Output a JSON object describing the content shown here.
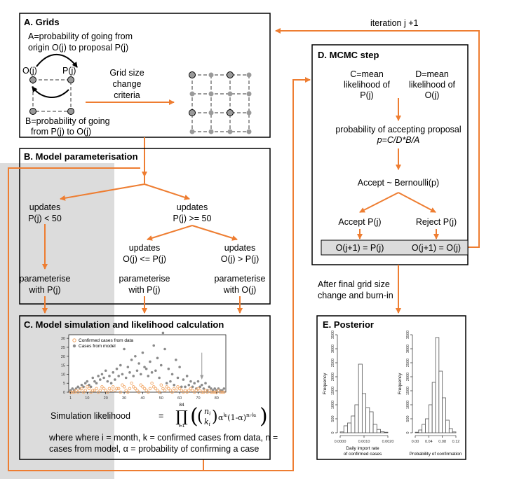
{
  "panelA": {
    "title": "A. Grids",
    "descA_line1": "A=probability of going from",
    "descA_line2": "origin O(j) to proposal P(j)",
    "node_origin": "O(j)",
    "node_proposal": "P(j)",
    "descB_line1": "B=probability of going",
    "descB_line2": "from P(j) to O(j)",
    "criteria_line1": "Grid size",
    "criteria_line2": "change",
    "criteria_line3": "criteria"
  },
  "iteration_label": "iteration j +1",
  "panelB": {
    "title": "B. Model parameterisation",
    "updates_lt_1": "updates",
    "updates_lt_2": "P(j) < 50",
    "updates_ge_1": "updates",
    "updates_ge_2": "P(j) >= 50",
    "updates_le_1": "updates",
    "updates_le_2": "O(j) <= P(j)",
    "updates_gt_1": "updates",
    "updates_gt_2": "O(j) > P(j)",
    "param1_1": "parameterise",
    "param1_2": "with P(j)",
    "param2_1": "parameterise",
    "param2_2": "with P(j)",
    "param3_1": "parameterise",
    "param3_2": "with O(j)"
  },
  "panelC": {
    "title": "C. Model simulation and likelihood calculation",
    "legend_data": "Confirmed cases from data",
    "legend_model": "Cases from model",
    "likelihood_label": "Simulation likelihood",
    "equals": "=",
    "formula_upper": "84",
    "formula_lower": "i=1",
    "where_line1": "where  where i = month, k = confirmed cases from data, n =",
    "where_line2": "cases from model, α = probability of confirming a case"
  },
  "panelD": {
    "title": "D. MCMC step",
    "C_line1": "C=mean",
    "C_line2": "likelihood of",
    "C_line3": "P(j)",
    "D_line1": "D=mean",
    "D_line2": "likelihood of",
    "D_line3": "O(j)",
    "prob_line1": "probability of accepting proposal",
    "prob_line2": "p=C/D*B/A",
    "bernoulli": "Accept ~ Bernoulli(p)",
    "accept": "Accept P(j)",
    "reject": "Reject P(j)",
    "update_accept": "O(j+1) = P(j)",
    "update_reject": "O(j+1) = O(j)"
  },
  "after_line1": "After final grid size",
  "after_line2": "change and burn-in",
  "panelE": {
    "title": "E. Posterior",
    "ylabel": "Frequency",
    "xlabel1_line1": "Daily import rate",
    "xlabel1_line2": "of confirmed cases",
    "xlabel2": "Probability of confirmation"
  },
  "colors": {
    "arrow": "#ee7d31",
    "shade": "#dcdcdc",
    "node": "#9a9a9a",
    "model_points": "#8a8a8a",
    "data_points": "#f2a766"
  },
  "chart_data": [
    {
      "type": "scatter",
      "series": [
        {
          "name": "Confirmed cases from data",
          "x": [
            1,
            2,
            3,
            4,
            5,
            6,
            7,
            8,
            9,
            10,
            11,
            12,
            13,
            14,
            15,
            16,
            17,
            18,
            19,
            20,
            21,
            22,
            23,
            24,
            25,
            26,
            27,
            28,
            29,
            30,
            31,
            32,
            33,
            34,
            35,
            36,
            37,
            38,
            39,
            40,
            41,
            42,
            43,
            44,
            45,
            46,
            47,
            48,
            49,
            50,
            51,
            52,
            53,
            54,
            55,
            56,
            57,
            58,
            59,
            60,
            61,
            62,
            63,
            64,
            65,
            66,
            67,
            68,
            69,
            70,
            71,
            72,
            73,
            74,
            75,
            76,
            77,
            78,
            79,
            80,
            81,
            82,
            83,
            84
          ],
          "values": [
            0,
            0,
            0,
            1,
            0,
            1,
            2,
            0,
            1,
            3,
            2,
            0,
            1,
            1,
            2,
            0,
            1,
            3,
            2,
            1,
            0,
            2,
            1,
            3,
            1,
            2,
            2,
            0,
            4,
            3,
            1,
            0,
            2,
            5,
            3,
            2,
            1,
            0,
            4,
            3,
            2,
            1,
            0,
            2,
            5,
            3,
            2,
            1,
            0,
            4,
            2,
            1,
            3,
            2,
            1,
            0,
            2,
            1,
            3,
            2,
            1,
            0,
            1,
            0,
            1,
            2,
            1,
            0,
            1,
            2,
            1,
            0,
            0,
            1,
            0,
            1,
            0,
            0,
            0,
            0,
            1,
            0,
            0,
            0
          ]
        },
        {
          "name": "Cases from model",
          "x": [
            1,
            2,
            3,
            4,
            5,
            6,
            7,
            8,
            9,
            10,
            11,
            12,
            13,
            14,
            15,
            16,
            17,
            18,
            19,
            20,
            21,
            22,
            23,
            24,
            25,
            26,
            27,
            28,
            29,
            30,
            31,
            32,
            33,
            34,
            35,
            36,
            37,
            38,
            39,
            40,
            41,
            42,
            43,
            44,
            45,
            46,
            47,
            48,
            49,
            50,
            51,
            52,
            53,
            54,
            55,
            56,
            57,
            58,
            59,
            60,
            61,
            62,
            63,
            64,
            65,
            66,
            67,
            68,
            69,
            70,
            71,
            72,
            73,
            74,
            75,
            76,
            77,
            78,
            79,
            80,
            81,
            82,
            83,
            84
          ],
          "values": [
            1,
            2,
            1,
            2,
            3,
            2,
            4,
            3,
            5,
            6,
            4,
            3,
            8,
            6,
            5,
            9,
            7,
            10,
            8,
            12,
            6,
            9,
            5,
            11,
            7,
            13,
            9,
            15,
            10,
            24,
            8,
            14,
            11,
            18,
            9,
            20,
            12,
            16,
            10,
            22,
            14,
            13,
            9,
            17,
            11,
            26,
            12,
            19,
            8,
            15,
            33,
            24,
            5,
            13,
            6,
            10,
            4,
            18,
            8,
            14,
            3,
            7,
            3,
            9,
            4,
            6,
            3,
            5,
            2,
            6,
            3,
            4,
            2,
            5,
            1,
            3,
            2,
            1,
            2,
            1,
            2,
            1,
            1,
            2
          ]
        }
      ],
      "xlim": [
        0,
        85
      ],
      "ylim": [
        0,
        32
      ],
      "x_ticks": [
        "1",
        "10",
        "20",
        "30",
        "40",
        "50",
        "60",
        "70",
        "80"
      ],
      "y_ticks": [
        "0",
        "5",
        "10",
        "15",
        "20",
        "25",
        "30"
      ]
    },
    {
      "type": "bar",
      "xlabel": "Daily import rate of confirmed cases",
      "ylabel": "Frequency",
      "x_ticks": [
        "0.0000",
        "0.0010",
        "0.0020"
      ],
      "y_ticks": [
        "0",
        "500",
        "1000",
        "1500",
        "2000",
        "2500",
        "3000",
        "3500"
      ],
      "ylim": [
        0,
        3500
      ],
      "values": [
        30,
        250,
        350,
        600,
        1000,
        2450,
        1400,
        900,
        750,
        300,
        120,
        40,
        20
      ]
    },
    {
      "type": "bar",
      "xlabel": "Probability of confirmation",
      "ylabel": "Frequency",
      "x_ticks": [
        "0.00",
        "0.04",
        "0.08",
        "0.12"
      ],
      "y_ticks": [
        "0",
        "500",
        "1000",
        "1500",
        "2000",
        "2500",
        "3000",
        "3500"
      ],
      "ylim": [
        0,
        3500
      ],
      "values": [
        20,
        100,
        300,
        500,
        1000,
        1800,
        3400,
        2200,
        1250,
        450,
        150,
        30
      ]
    }
  ]
}
